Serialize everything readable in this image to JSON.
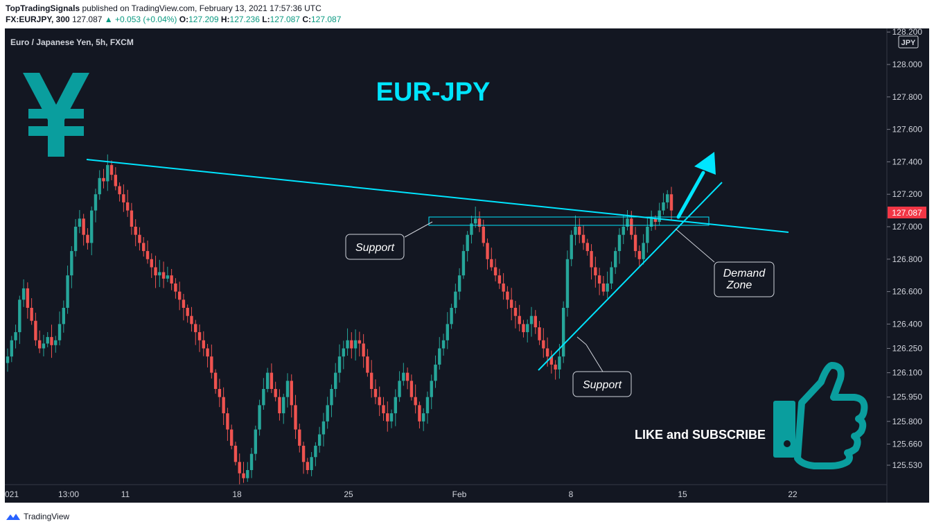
{
  "header": {
    "author": "TopTradingSignals",
    "published": "published on TradingView.com, February 13, 2021 17:57:36 UTC"
  },
  "quote": {
    "symbol": "FX:EURJPY, 300",
    "last": "127.087",
    "change": "+0.053 (+0.04%)",
    "o_label": "O:",
    "o": "127.209",
    "h_label": "H:",
    "h": "127.236",
    "l_label": "L:",
    "l": "127.087",
    "c_label": "C:",
    "c": "127.087"
  },
  "footer": {
    "brand": "TradingView"
  },
  "colors": {
    "background": "#131722",
    "up": "#26a69a",
    "down": "#ef5350",
    "annotation": "#00e5ff",
    "logo": "#0a9e9e",
    "price_tag": "#f23645"
  },
  "icons": [
    "yen-sign-icon",
    "thumbs-up-icon",
    "up-arrow-icon",
    "tradingview-logo-icon"
  ],
  "chart_data": {
    "type": "candlestick",
    "pair": "Euro / Japanese Yen, 5h, FXCM",
    "title": "EUR-JPY",
    "currency": "JPY",
    "last_price": "127.087",
    "y_ticks": [
      "128.200",
      "128.000",
      "127.800",
      "127.600",
      "127.400",
      "127.200",
      "127.000",
      "126.800",
      "126.600",
      "126.400",
      "126.250",
      "126.100",
      "125.950",
      "125.800",
      "125.660",
      "125.530"
    ],
    "x_ticks": [
      "021",
      "13:00",
      "11",
      "18",
      "25",
      "Feb",
      "8",
      "15",
      "22"
    ],
    "annotations": {
      "support_left": "Support",
      "support_bottom": "Support",
      "demand_zone_line1": "Demand",
      "demand_zone_line2": "Zone",
      "cta": "LIKE and SUBSCRIBE"
    },
    "closes": [
      126.2,
      126.3,
      126.35,
      126.55,
      126.62,
      126.5,
      126.42,
      126.3,
      126.25,
      126.28,
      126.32,
      126.27,
      126.3,
      126.4,
      126.5,
      126.7,
      126.85,
      127.0,
      127.05,
      126.95,
      126.9,
      127.1,
      127.2,
      127.3,
      127.28,
      127.38,
      127.32,
      127.25,
      127.2,
      127.15,
      127.1,
      127.0,
      126.95,
      126.9,
      126.85,
      126.8,
      126.75,
      126.7,
      126.72,
      126.68,
      126.7,
      126.65,
      126.6,
      126.55,
      126.5,
      126.45,
      126.4,
      126.35,
      126.3,
      126.25,
      126.2,
      126.1,
      126.0,
      125.95,
      125.85,
      125.75,
      125.65,
      125.55,
      125.48,
      125.45,
      125.5,
      125.6,
      125.75,
      125.9,
      126.0,
      126.1,
      126.0,
      125.95,
      125.85,
      125.95,
      126.05,
      125.9,
      125.75,
      125.65,
      125.55,
      125.5,
      125.58,
      125.65,
      125.72,
      125.8,
      125.9,
      126.0,
      126.1,
      126.2,
      126.25,
      126.3,
      126.25,
      126.3,
      126.28,
      126.2,
      126.1,
      126.0,
      125.95,
      125.9,
      125.85,
      125.8,
      125.85,
      125.95,
      126.05,
      126.1,
      126.05,
      125.95,
      125.9,
      125.8,
      125.85,
      125.95,
      126.05,
      126.15,
      126.25,
      126.3,
      126.4,
      126.5,
      126.6,
      126.7,
      126.85,
      126.95,
      127.02,
      127.05,
      127.0,
      126.9,
      126.8,
      126.75,
      126.7,
      126.65,
      126.6,
      126.55,
      126.5,
      126.45,
      126.4,
      126.35,
      126.4,
      126.45,
      126.38,
      126.3,
      126.25,
      126.2,
      126.15,
      126.12,
      126.2,
      126.5,
      126.8,
      126.95,
      127.0,
      126.95,
      126.9,
      126.85,
      126.75,
      126.7,
      126.65,
      126.6,
      126.65,
      126.75,
      126.85,
      126.95,
      127.0,
      127.05,
      126.95,
      126.85,
      126.8,
      126.9,
      127.0,
      127.05,
      127.03,
      127.1,
      127.15,
      127.2,
      127.1
    ]
  }
}
